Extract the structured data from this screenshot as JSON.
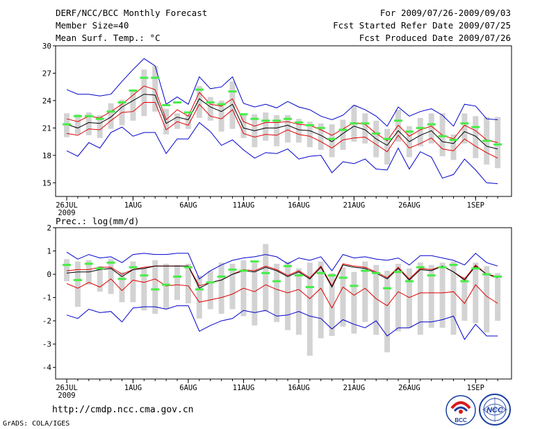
{
  "header": {
    "title": "DERF/NCC/BCC Monthly Forecast",
    "member_size": "Member Size=40",
    "variable": "Mean Surf. Temp.: °C",
    "period": "For 2009/07/26-2009/09/03",
    "started": "Fcst Started Refer Date 2009/07/25",
    "produced": "Fcst Produced Date 2009/07/26"
  },
  "footer": {
    "url": "http://cmdp.ncc.cma.gov.cn",
    "grads": "GrADS: COLA/IGES",
    "logo_left": "BCC",
    "logo_right": "NCC"
  },
  "colors": {
    "mean": "#000000",
    "spread": "#e00000",
    "extreme": "#0000cc",
    "box": "#d3d3d3",
    "marker": "#44ee44"
  },
  "chart_data": [
    {
      "type": "line",
      "title": "",
      "xlabel": "",
      "ylabel": "",
      "ylim": [
        13.5,
        30
      ],
      "yticks": [
        15,
        18,
        21,
        24,
        27,
        30
      ],
      "xticks": [
        {
          "day": 1,
          "label": "26JUL"
        },
        {
          "day": 7,
          "label": "1AUG"
        },
        {
          "day": 12,
          "label": "6AUG"
        },
        {
          "day": 17,
          "label": "11AUG"
        },
        {
          "day": 22,
          "label": "16AUG"
        },
        {
          "day": 27,
          "label": "21AUG"
        },
        {
          "day": 32,
          "label": "26AUG"
        },
        {
          "day": 38,
          "label": "1SEP"
        }
      ],
      "year_label": "2009",
      "days": [
        1,
        2,
        3,
        4,
        5,
        6,
        7,
        8,
        9,
        10,
        11,
        12,
        13,
        14,
        15,
        16,
        17,
        18,
        19,
        20,
        21,
        22,
        23,
        24,
        25,
        26,
        27,
        28,
        29,
        30,
        31,
        32,
        33,
        34,
        35,
        36,
        37,
        38,
        39,
        40
      ],
      "series": [
        {
          "name": "max",
          "values": [
            25.2,
            24.7,
            24.7,
            24.5,
            24.7,
            26.1,
            27.4,
            28.6,
            27.8,
            23.6,
            24.4,
            23.6,
            26.6,
            25.3,
            25.5,
            26.6,
            23.7,
            23.3,
            23.6,
            23.2,
            23.9,
            23.3,
            23.0,
            22.3,
            21.9,
            22.4,
            23.5,
            23.0,
            22.3,
            21.2,
            23.3,
            22.3,
            22.8,
            23.1,
            22.4,
            21.2,
            23.6,
            23.4,
            22.0,
            21.9
          ]
        },
        {
          "name": "upper",
          "values": [
            22.0,
            21.7,
            22.3,
            22.1,
            22.8,
            23.6,
            24.6,
            25.6,
            25.2,
            21.9,
            23.0,
            22.3,
            24.9,
            23.6,
            23.4,
            24.2,
            21.7,
            21.2,
            21.6,
            21.6,
            21.7,
            21.4,
            21.3,
            20.8,
            20.2,
            20.9,
            21.6,
            21.4,
            20.4,
            19.6,
            21.3,
            20.1,
            20.8,
            21.2,
            20.2,
            19.8,
            21.3,
            20.7,
            19.7,
            19.4
          ]
        },
        {
          "name": "mean",
          "values": [
            21.4,
            21.0,
            21.6,
            21.5,
            22.2,
            23.3,
            24.0,
            24.7,
            24.6,
            21.5,
            22.2,
            21.9,
            24.2,
            23.3,
            22.8,
            23.6,
            21.0,
            20.7,
            21.0,
            21.0,
            21.3,
            20.8,
            20.7,
            20.2,
            19.5,
            20.4,
            21.2,
            20.8,
            19.8,
            19.1,
            20.7,
            19.5,
            20.2,
            20.7,
            19.5,
            19.3,
            20.6,
            20.1,
            19.0,
            18.7
          ]
        },
        {
          "name": "lower",
          "values": [
            20.4,
            20.2,
            20.9,
            20.8,
            21.8,
            22.7,
            22.8,
            23.8,
            23.8,
            20.8,
            21.7,
            21.3,
            23.6,
            22.3,
            22.0,
            23.0,
            20.4,
            20.0,
            20.3,
            20.2,
            20.8,
            20.3,
            20.1,
            19.5,
            18.8,
            19.7,
            19.9,
            20.0,
            19.2,
            18.4,
            20.2,
            18.8,
            19.3,
            19.9,
            18.7,
            18.5,
            19.8,
            19.0,
            18.3,
            17.7
          ]
        },
        {
          "name": "min",
          "values": [
            18.5,
            17.9,
            19.4,
            18.8,
            20.5,
            21.1,
            20.1,
            20.5,
            20.5,
            18.2,
            19.8,
            19.8,
            21.6,
            20.6,
            19.1,
            19.7,
            18.6,
            17.7,
            18.3,
            18.2,
            18.7,
            17.6,
            17.9,
            18.0,
            16.1,
            17.3,
            17.1,
            17.6,
            16.5,
            16.4,
            18.8,
            16.5,
            18.4,
            17.8,
            15.5,
            15.9,
            17.6,
            16.4,
            15.0,
            14.9
          ]
        }
      ],
      "boxes": {
        "high": [
          22.6,
          22.5,
          22.7,
          22.4,
          23.7,
          24.1,
          25.1,
          27.4,
          27.8,
          23.1,
          22.6,
          22.5,
          25.6,
          24.4,
          24.0,
          26.1,
          22.5,
          22.5,
          22.7,
          22.4,
          22.4,
          22.0,
          21.7,
          21.5,
          21.4,
          21.9,
          23.5,
          22.6,
          21.8,
          20.9,
          23.0,
          21.2,
          22.1,
          22.6,
          22.6,
          20.3,
          22.6,
          22.3,
          22.2,
          22.2
        ],
        "low": [
          20.0,
          20.3,
          20.2,
          19.9,
          20.9,
          21.3,
          21.8,
          22.3,
          22.8,
          20.3,
          20.9,
          20.9,
          22.1,
          21.8,
          20.6,
          20.9,
          19.9,
          18.9,
          19.6,
          19.0,
          19.4,
          19.4,
          18.9,
          18.6,
          17.8,
          18.6,
          19.5,
          19.3,
          17.8,
          17.0,
          19.5,
          17.8,
          19.0,
          19.3,
          17.9,
          17.5,
          19.3,
          17.7,
          17.0,
          16.6
        ]
      },
      "markers": [
        21.4,
        22.3,
        22.3,
        22.0,
        22.8,
        23.8,
        25.1,
        26.5,
        26.5,
        23.5,
        23.8,
        22.7,
        25.2,
        23.8,
        23.6,
        25.0,
        22.5,
        22.0,
        21.8,
        21.8,
        22.0,
        21.6,
        21.3,
        21.0,
        19.8,
        20.8,
        21.5,
        21.5,
        20.4,
        19.8,
        21.8,
        20.6,
        21.0,
        21.4,
        20.1,
        19.7,
        21.5,
        21.1,
        19.6,
        19.2
      ]
    },
    {
      "type": "line",
      "title": "Prec.: log(mm/d)",
      "xlabel": "",
      "ylabel": "",
      "ylim": [
        -4.5,
        2
      ],
      "yticks": [
        -4,
        -3,
        -2,
        -1,
        0,
        1,
        2
      ],
      "xticks": [
        {
          "day": 1,
          "label": "26JUL"
        },
        {
          "day": 7,
          "label": "1AUG"
        },
        {
          "day": 12,
          "label": "6AUG"
        },
        {
          "day": 17,
          "label": "11AUG"
        },
        {
          "day": 22,
          "label": "16AUG"
        },
        {
          "day": 27,
          "label": "21AUG"
        },
        {
          "day": 32,
          "label": "26AUG"
        },
        {
          "day": 38,
          "label": "1SEP"
        }
      ],
      "year_label": "2009",
      "days": [
        1,
        2,
        3,
        4,
        5,
        6,
        7,
        8,
        9,
        10,
        11,
        12,
        13,
        14,
        15,
        16,
        17,
        18,
        19,
        20,
        21,
        22,
        23,
        24,
        25,
        26,
        27,
        28,
        29,
        30,
        31,
        32,
        33,
        34,
        35,
        36,
        37,
        38,
        39,
        40
      ],
      "series": [
        {
          "name": "max",
          "values": [
            0.95,
            0.65,
            0.85,
            0.7,
            0.75,
            0.5,
            0.85,
            0.9,
            0.85,
            0.85,
            0.9,
            0.9,
            -0.2,
            0.15,
            0.4,
            0.6,
            0.7,
            0.75,
            0.85,
            0.75,
            0.45,
            0.7,
            0.6,
            0.75,
            0.15,
            0.85,
            0.7,
            0.75,
            0.65,
            0.6,
            0.7,
            0.4,
            0.8,
            0.8,
            0.7,
            0.6,
            0.4,
            0.9,
            0.5,
            0.35
          ]
        },
        {
          "name": "upper",
          "values": [
            0.15,
            0.2,
            0.2,
            0.3,
            0.3,
            0.0,
            0.2,
            0.3,
            0.35,
            0.35,
            0.35,
            0.35,
            -0.5,
            -0.35,
            -0.25,
            0.0,
            0.2,
            0.15,
            0.35,
            0.2,
            -0.05,
            0.15,
            -0.15,
            0.35,
            -0.5,
            0.45,
            0.35,
            0.3,
            0.1,
            -0.15,
            0.3,
            -0.2,
            0.25,
            0.2,
            0.35,
            0.1,
            -0.2,
            0.4,
            0.0,
            -0.1
          ]
        },
        {
          "name": "mean",
          "values": [
            0.05,
            0.1,
            0.1,
            0.2,
            0.25,
            -0.1,
            0.2,
            0.25,
            0.35,
            0.35,
            0.35,
            0.35,
            -0.6,
            -0.35,
            -0.25,
            0.0,
            0.15,
            0.1,
            0.3,
            0.15,
            -0.1,
            0.1,
            -0.2,
            0.3,
            -0.55,
            0.4,
            0.3,
            0.25,
            0.05,
            -0.2,
            0.25,
            -0.25,
            0.2,
            0.15,
            0.35,
            0.1,
            -0.25,
            0.35,
            0.0,
            -0.15
          ]
        },
        {
          "name": "lower",
          "values": [
            -0.4,
            -0.6,
            -0.35,
            -0.55,
            -0.2,
            -0.7,
            -0.25,
            -0.35,
            -0.2,
            -0.5,
            -0.45,
            -0.5,
            -1.2,
            -1.1,
            -1.0,
            -0.85,
            -0.6,
            -0.75,
            -0.45,
            -0.65,
            -0.8,
            -0.65,
            -1.05,
            -0.6,
            -1.45,
            -0.55,
            -0.9,
            -0.6,
            -1.05,
            -1.35,
            -0.75,
            -1.0,
            -0.8,
            -0.8,
            -0.8,
            -0.75,
            -1.25,
            -0.45,
            -0.95,
            -1.25
          ]
        },
        {
          "name": "min",
          "values": [
            -1.75,
            -1.9,
            -1.5,
            -1.65,
            -1.6,
            -2.05,
            -1.45,
            -1.4,
            -1.4,
            -1.5,
            -1.35,
            -1.35,
            -2.45,
            -2.2,
            -2.0,
            -1.9,
            -1.55,
            -1.65,
            -1.55,
            -1.8,
            -1.75,
            -1.6,
            -1.8,
            -1.9,
            -2.35,
            -1.95,
            -2.15,
            -2.3,
            -2.0,
            -2.65,
            -2.3,
            -2.3,
            -2.05,
            -2.05,
            -1.95,
            -1.8,
            -2.8,
            -2.15,
            -2.65,
            -2.65
          ]
        }
      ],
      "boxes": {
        "high": [
          0.65,
          0.55,
          0.6,
          0.35,
          0.65,
          0.1,
          0.55,
          0.3,
          0.6,
          0.45,
          0.4,
          0.45,
          -0.05,
          0.15,
          0.5,
          0.45,
          0.6,
          0.5,
          1.3,
          0.45,
          0.55,
          0.25,
          0.5,
          0.55,
          0.05,
          0.3,
          0.1,
          0.55,
          0.4,
          0.15,
          0.45,
          0.25,
          0.5,
          0.4,
          0.5,
          0.55,
          -0.1,
          0.5,
          0.35,
          0.05
        ],
        "low": [
          -0.3,
          -1.4,
          -0.45,
          -0.75,
          -0.85,
          -1.2,
          -1.2,
          -1.55,
          -1.7,
          -1.5,
          -1.1,
          -1.25,
          -1.9,
          -1.5,
          -1.7,
          -1.5,
          -1.8,
          -2.2,
          -1.6,
          -2.05,
          -2.4,
          -2.6,
          -3.5,
          -2.75,
          -2.65,
          -2.25,
          -2.55,
          -2.05,
          -2.6,
          -3.35,
          -2.45,
          -2.3,
          -2.6,
          -2.3,
          -2.3,
          -2.6,
          -2.0,
          -2.1,
          -2.5,
          -2.0
        ]
      },
      "markers": [
        0.4,
        -0.25,
        0.45,
        0.25,
        0.5,
        -0.2,
        0.3,
        -0.05,
        -0.65,
        -0.45,
        -0.1,
        0.3,
        -0.65,
        -0.35,
        -0.1,
        0.2,
        0.15,
        0.55,
        0.05,
        -0.3,
        0.35,
        -0.05,
        -0.55,
        0.05,
        -0.05,
        -0.15,
        -0.5,
        0.15,
        0.05,
        -0.6,
        0.1,
        -0.3,
        0.3,
        -0.05,
        0.3,
        0.4,
        -0.3,
        0.25,
        0.0,
        -0.1
      ]
    }
  ]
}
